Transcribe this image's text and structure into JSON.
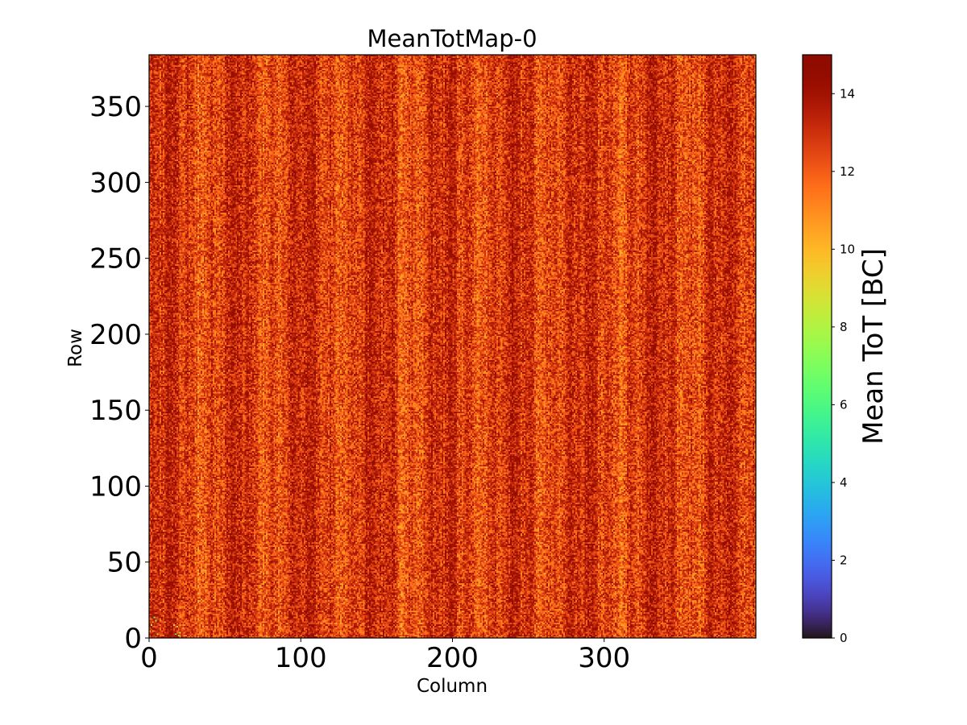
{
  "chart_data": {
    "type": "heatmap",
    "title": "MeanTotMap-0",
    "xlabel": "Column",
    "ylabel": "Row",
    "colorbar_label": "Mean ToT [BC]",
    "xlim": [
      0,
      400
    ],
    "ylim": [
      0,
      384
    ],
    "n_columns": 400,
    "n_rows": 384,
    "xticks": [
      0,
      100,
      200,
      300
    ],
    "yticks": [
      0,
      50,
      100,
      150,
      200,
      250,
      300,
      350
    ],
    "colorbar_range": [
      0,
      15
    ],
    "colorbar_ticks": [
      0,
      2,
      4,
      6,
      8,
      10,
      12,
      14
    ],
    "colormap": "turbo",
    "value_distribution": {
      "typical_min": 10,
      "typical_mean": 12.8,
      "typical_max": 15
    },
    "grid": false
  }
}
